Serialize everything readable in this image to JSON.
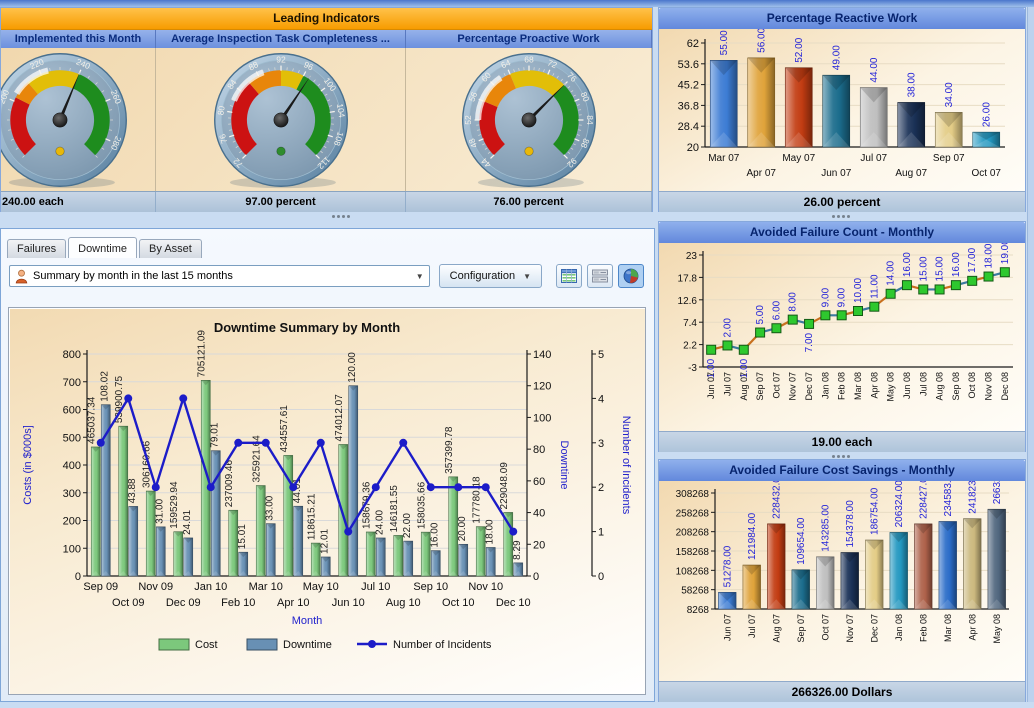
{
  "leading": {
    "title": "Leading Indicators",
    "gauges": [
      {
        "title": "Implemented this Month",
        "status": "240.00 each",
        "value": 240,
        "min": 170,
        "max": 290,
        "minor_step": 5,
        "major_ticks": [
          200,
          220,
          240,
          260,
          280
        ],
        "zones": [
          {
            "from": 170,
            "to": 202,
            "color": "#CC1212"
          },
          {
            "from": 202,
            "to": 212,
            "color": "#E8860A"
          },
          {
            "from": 212,
            "to": 240,
            "color": "#E2BE08"
          },
          {
            "from": 240,
            "to": 290,
            "color": "#1E8C1E"
          }
        ],
        "band": [
          204,
          224
        ],
        "dot_color": "#E8B80A"
      },
      {
        "title": "Average Inspection Task Completeness ...",
        "status": "97.00 percent",
        "value": 97,
        "min": 72,
        "max": 112,
        "minor_step": 1,
        "major_ticks": [
          72,
          76,
          80,
          84,
          88,
          92,
          96,
          100,
          104,
          108,
          112
        ],
        "zones": [
          {
            "from": 72,
            "to": 86,
            "color": "#CC1212"
          },
          {
            "from": 86,
            "to": 92,
            "color": "#E8860A"
          },
          {
            "from": 92,
            "to": 96,
            "color": "#E2BE08"
          },
          {
            "from": 96,
            "to": 112,
            "color": "#1E8C1E"
          }
        ],
        "band": [
          82,
          89
        ],
        "dot_color": "#2E8C2E"
      },
      {
        "title": "Percentage Proactive Work",
        "status": "76.00 percent",
        "value": 76,
        "min": 44,
        "max": 92,
        "minor_step": 1,
        "major_ticks": [
          44,
          48,
          52,
          56,
          60,
          64,
          68,
          72,
          76,
          80,
          84,
          88,
          92
        ],
        "zones": [
          {
            "from": 44,
            "to": 56,
            "color": "#CC1212"
          },
          {
            "from": 56,
            "to": 64,
            "color": "#E8860A"
          },
          {
            "from": 64,
            "to": 76,
            "color": "#E2BE08"
          },
          {
            "from": 76,
            "to": 92,
            "color": "#1E8C1E"
          }
        ],
        "band": [
          52,
          62
        ],
        "dot_color": "#E8B80A"
      }
    ]
  },
  "tabs": {
    "items": [
      {
        "label": "Failures",
        "active": false
      },
      {
        "label": "Downtime",
        "active": true
      },
      {
        "label": "By Asset",
        "active": false
      }
    ]
  },
  "toolbar": {
    "summary_value": "Summary by month in the last 15 months",
    "configuration_label": "Configuration",
    "view_buttons": [
      "table-view-icon",
      "form-view-icon",
      "pie-chart-view-icon"
    ]
  },
  "chart_data": [
    {
      "id": "downtime-summary",
      "type": "combo",
      "title": "Downtime Summary by Month",
      "xlabel": "Month",
      "ylabel": "Costs (in $000s]",
      "y2label": "Downtime",
      "y3label": "Number of Incidents",
      "categories": [
        "Sep 09",
        "Oct 09",
        "Nov 09",
        "Dec 09",
        "Jan 10",
        "Feb 10",
        "Mar 10",
        "Apr 10",
        "May 10",
        "Jun 10",
        "Jul 10",
        "Aug 10",
        "Sep 10",
        "Oct 10",
        "Nov 10",
        "Dec 10"
      ],
      "ylim": [
        0,
        800
      ],
      "yticks": [
        0,
        100,
        200,
        300,
        400,
        500,
        600,
        700,
        800
      ],
      "y2lim": [
        0,
        140
      ],
      "y2ticks": [
        0,
        20,
        40,
        60,
        80,
        100,
        120,
        140
      ],
      "y3lim": [
        0,
        5
      ],
      "y3ticks": [
        0,
        1,
        2,
        3,
        4,
        5
      ],
      "legend": [
        "Cost",
        "Downtime",
        "Number of Incidents"
      ],
      "series": [
        {
          "name": "Cost",
          "type": "bar",
          "axis": "y",
          "color": "#7CC87C",
          "values_thousands": [
            465.04,
            539.9,
            306.16,
            159.53,
            705.12,
            237.01,
            325.92,
            434.56,
            118.62,
            474.01,
            158.68,
            146.18,
            158.04,
            357.4,
            177.78,
            229.05
          ],
          "labels": [
            "465037.34",
            "539900.75",
            "306160.66",
            "159529.94",
            "705121.09",
            "237009.46",
            "325921.64",
            "434557.61",
            "118615.21",
            "474012.07",
            "158679.36",
            "146181.55",
            "158035.66",
            "357399.78",
            "177780.18",
            "229048.09"
          ]
        },
        {
          "name": "Downtime",
          "type": "bar",
          "axis": "y2",
          "color": "#6890B4",
          "values": [
            108.02,
            43.88,
            31.0,
            24.01,
            79.01,
            15.01,
            33.0,
            44.01,
            12.01,
            120.0,
            24.0,
            22.0,
            16.0,
            20.0,
            18.0,
            8.29
          ],
          "labels": [
            "108.02",
            "43.88",
            "31.00",
            "24.01",
            "79.01",
            "15.01",
            "33.00",
            "44.01",
            "12.01",
            "120.00",
            "24.00",
            "22.00",
            "16.00",
            "20.00",
            "18.00",
            "8.29"
          ]
        },
        {
          "name": "Number of Incidents",
          "type": "line",
          "axis": "y3",
          "color": "#1C1CC8",
          "values": [
            3,
            4,
            2,
            4,
            2,
            3,
            3,
            2,
            3,
            1,
            2,
            3,
            2,
            2,
            2,
            1
          ]
        }
      ]
    },
    {
      "id": "pct-reactive",
      "type": "bar",
      "title": "Percentage Reactive  Work",
      "status": "26.00 percent",
      "categories": [
        "Mar 07",
        "Apr 07",
        "May 07",
        "Jun 07",
        "Jul 07",
        "Aug 07",
        "Sep 07",
        "Oct 07"
      ],
      "values": [
        55,
        56,
        52,
        49,
        44,
        38,
        34,
        26
      ],
      "labels": [
        "55.00",
        "56.00",
        "52.00",
        "49.00",
        "44.00",
        "38.00",
        "34.00",
        "26.00"
      ],
      "ylim": [
        20,
        62
      ],
      "yticks": [
        20,
        28.4,
        36.8,
        45.2,
        53.6,
        62
      ]
    },
    {
      "id": "avoided-count",
      "type": "line",
      "title": "Avoided Failure Count - Monthly",
      "status": "19.00 each",
      "categories": [
        "Jun 07",
        "Jul 07",
        "Aug 07",
        "Sep 07",
        "Oct 07",
        "Nov 07",
        "Dec 07",
        "Jan 08",
        "Feb 08",
        "Mar 08",
        "Apr 08",
        "May 08",
        "Jun 08",
        "Jul 08",
        "Aug 08",
        "Sep 08",
        "Oct 08",
        "Nov 08",
        "Dec 08"
      ],
      "values": [
        1,
        2,
        1,
        5,
        6,
        8,
        7,
        9,
        9,
        10,
        11,
        14,
        16,
        15,
        15,
        16,
        17,
        18,
        19
      ],
      "labels": [
        "1.00",
        "2.00",
        "1.00",
        "5.00",
        "6.00",
        "8.00",
        "7.00",
        "9.00",
        "9.00",
        "10.00",
        "11.00",
        "14.00",
        "16.00",
        "15.00",
        "15.00",
        "16.00",
        "17.00",
        "18.00",
        "19.00"
      ],
      "labels_below_idx": [
        0,
        2,
        6
      ],
      "ylim": [
        -3,
        23
      ],
      "yticks": [
        -3,
        2.2,
        7.4,
        12.6,
        17.8,
        23
      ]
    },
    {
      "id": "avoided-savings",
      "type": "bar",
      "title": "Avoided Failure Cost Savings - Monthly",
      "status": "266326.00 Dollars",
      "categories": [
        "Jun 07",
        "Jul 07",
        "Aug 07",
        "Sep 07",
        "Oct 07",
        "Nov 07",
        "Dec 07",
        "Jan 08",
        "Feb 08",
        "Mar 08",
        "Apr 08",
        "May 08"
      ],
      "values": [
        51278,
        121984,
        228432,
        109654,
        143285,
        154378,
        186754,
        206324,
        228427,
        234583,
        241823,
        266326
      ],
      "labels": [
        "51278.00",
        "121984.00",
        "228432.00",
        "109654.00",
        "143285.00",
        "154378.00",
        "186754.00",
        "206324.00",
        "228427.00",
        "234583.00",
        "241823.00",
        "266326.00"
      ],
      "ylim": [
        8268,
        308268
      ],
      "yticks": [
        8268,
        58268,
        108268,
        158268,
        208268,
        258268,
        308268
      ]
    }
  ],
  "palette": [
    "#3C7CD4",
    "#DFA33A",
    "#C23C12",
    "#1B6C8C",
    "#BFBFBF",
    "#1A3156",
    "#E3CC86",
    "#2398C0",
    "#AE614A",
    "#2A6CC8",
    "#CBB87E",
    "#50667E"
  ],
  "label_color": "#2424D8"
}
